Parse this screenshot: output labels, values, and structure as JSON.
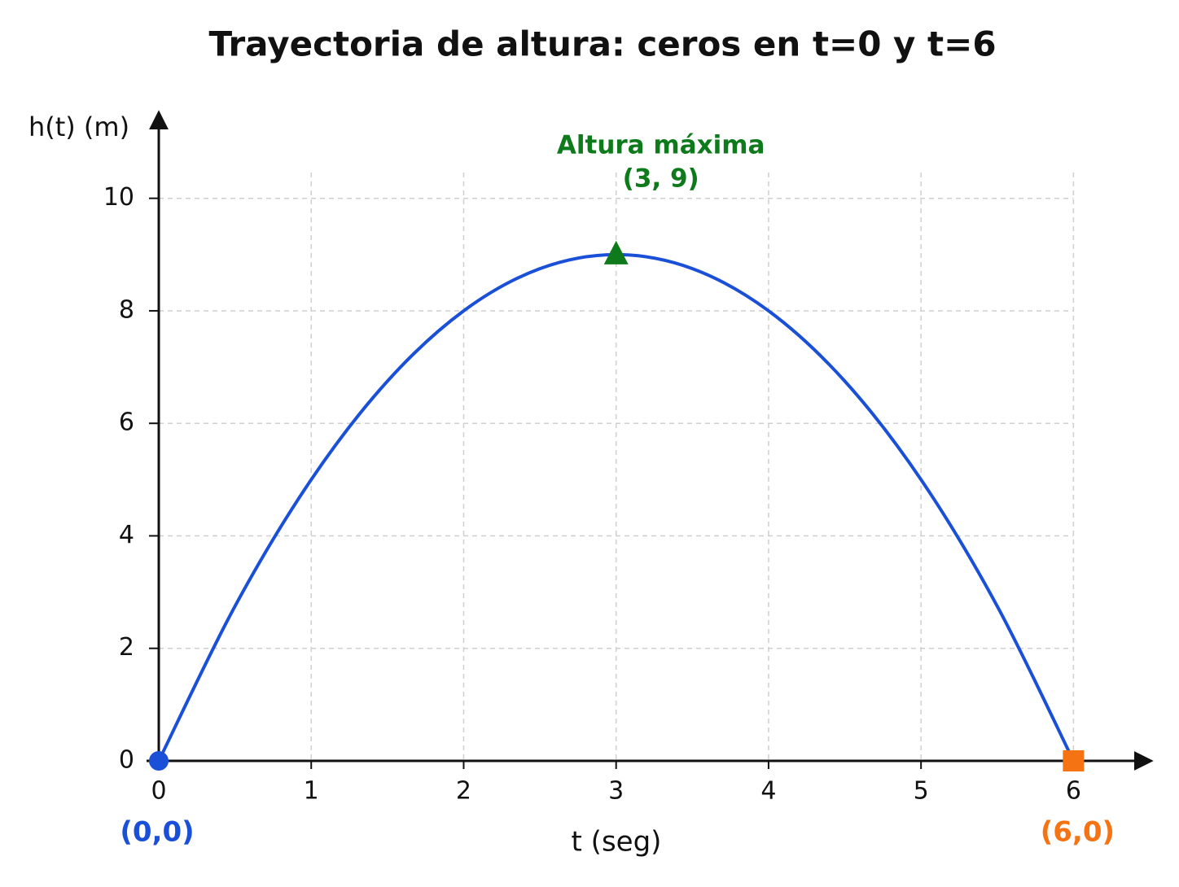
{
  "chart_data": {
    "type": "line",
    "title": "Trayectoria de altura: ceros en t=0 y t=6",
    "x_label": "t (seg)",
    "y_label": "h(t) (m)",
    "x": [
      0,
      0.5,
      1,
      1.5,
      2,
      2.5,
      3,
      3.5,
      4,
      4.5,
      5,
      5.5,
      6
    ],
    "series": [
      {
        "name": "h(t)",
        "color": "#1a50d8",
        "values": [
          0,
          2.75,
          5,
          6.75,
          8,
          8.75,
          9,
          8.75,
          8,
          6.75,
          5,
          2.75,
          0
        ]
      }
    ],
    "xlim": [
      0,
      6.5
    ],
    "ylim": [
      0,
      11.5
    ],
    "xticks": [
      0,
      1,
      2,
      3,
      4,
      5,
      6
    ],
    "yticks": [
      0,
      2,
      4,
      6,
      8,
      10
    ],
    "grid": true,
    "points": [
      {
        "x": 0,
        "y": 0,
        "label": "(0,0)",
        "color": "#1a50d8",
        "marker": "circle"
      },
      {
        "x": 3,
        "y": 9,
        "label": "(3, 9)",
        "color": "#0f7a1c",
        "marker": "triangle",
        "annotation": "Altura máxima"
      },
      {
        "x": 6,
        "y": 0,
        "label": "(6,0)",
        "color": "#f57312",
        "marker": "square"
      }
    ]
  }
}
